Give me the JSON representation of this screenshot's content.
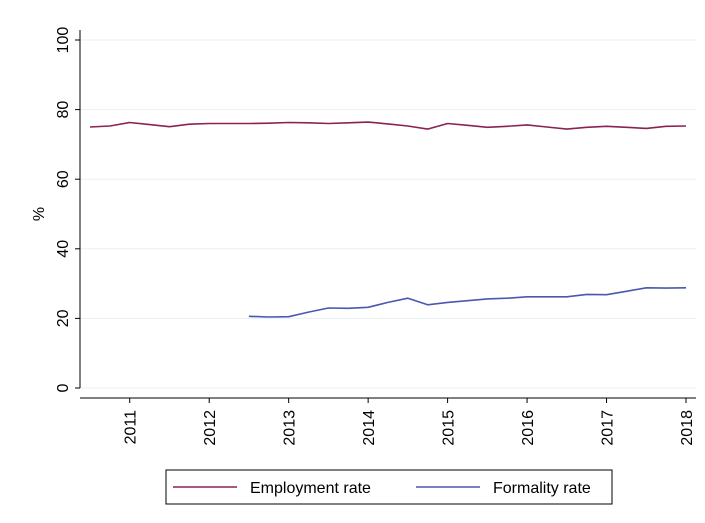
{
  "chart_data": {
    "type": "line",
    "title": "",
    "xlabel": "",
    "ylabel": "%",
    "ylim": [
      0,
      100
    ],
    "xlim": [
      2010.5,
      2018.0
    ],
    "y_ticks": [
      0,
      20,
      40,
      60,
      80,
      100
    ],
    "x_ticks": [
      "2011",
      "2012",
      "2013",
      "2014",
      "2015",
      "2016",
      "2017",
      "2018"
    ],
    "grid": "horizontal",
    "legend_position": "bottom",
    "series": [
      {
        "name": "Employment rate",
        "color": "#8b2252",
        "x": [
          2010.5,
          2010.75,
          2011.0,
          2011.25,
          2011.5,
          2011.75,
          2012.0,
          2012.25,
          2012.5,
          2012.75,
          2013.0,
          2013.25,
          2013.5,
          2013.75,
          2014.0,
          2014.25,
          2014.5,
          2014.75,
          2015.0,
          2015.25,
          2015.5,
          2015.75,
          2016.0,
          2016.25,
          2016.5,
          2016.75,
          2017.0,
          2017.25,
          2017.5,
          2017.75,
          2018.0
        ],
        "y": [
          75.0,
          75.3,
          76.3,
          75.7,
          75.1,
          75.8,
          76.0,
          76.0,
          76.0,
          76.1,
          76.3,
          76.2,
          76.0,
          76.2,
          76.4,
          75.9,
          75.3,
          74.4,
          76.0,
          75.5,
          74.9,
          75.2,
          75.6,
          75.0,
          74.4,
          74.9,
          75.2,
          74.9,
          74.6,
          75.2,
          75.3
        ]
      },
      {
        "name": "Formality rate",
        "color": "#4a58b0",
        "x": [
          2012.5,
          2012.75,
          2013.0,
          2013.25,
          2013.5,
          2013.75,
          2014.0,
          2014.25,
          2014.5,
          2014.75,
          2015.0,
          2015.25,
          2015.5,
          2015.75,
          2016.0,
          2016.25,
          2016.5,
          2016.75,
          2017.0,
          2017.25,
          2017.5,
          2017.75,
          2018.0
        ],
        "y": [
          20.6,
          20.4,
          20.5,
          21.8,
          23.0,
          22.9,
          23.2,
          24.6,
          25.8,
          23.9,
          24.6,
          25.1,
          25.6,
          25.8,
          26.2,
          26.2,
          26.2,
          26.9,
          26.8,
          27.8,
          28.8,
          28.7,
          28.8
        ]
      }
    ]
  }
}
